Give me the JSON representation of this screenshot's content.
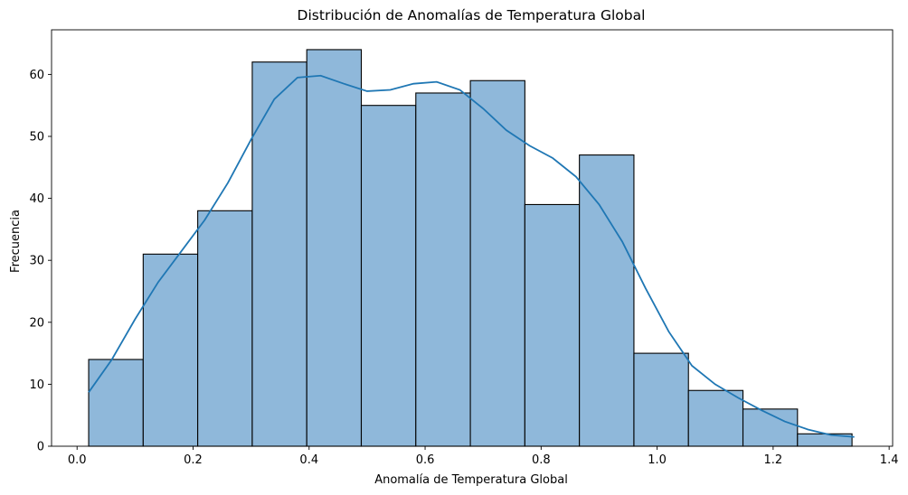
{
  "chart_data": {
    "type": "bar",
    "title": "Distribución de Anomalías de Temperatura Global",
    "xlabel": "Anomalía de Temperatura Global",
    "ylabel": "Frecuencia",
    "xlim": [
      -0.044,
      1.406
    ],
    "ylim": [
      0,
      67.2
    ],
    "xticks": [
      0.0,
      0.2,
      0.4,
      0.6,
      0.8,
      1.0,
      1.2,
      1.4
    ],
    "xtick_labels": [
      "0.0",
      "0.2",
      "0.4",
      "0.6",
      "0.8",
      "1.0",
      "1.2",
      "1.4"
    ],
    "yticks": [
      0,
      10,
      20,
      30,
      40,
      50,
      60
    ],
    "ytick_labels": [
      "0",
      "10",
      "20",
      "30",
      "40",
      "50",
      "60"
    ],
    "bin_edges": [
      0.02,
      0.114,
      0.208,
      0.302,
      0.396,
      0.49,
      0.584,
      0.678,
      0.772,
      0.866,
      0.96,
      1.054,
      1.148,
      1.242,
      1.336
    ],
    "values": [
      14,
      31,
      38,
      62,
      64,
      55,
      57,
      59,
      39,
      47,
      15,
      9,
      6,
      2
    ],
    "kde": {
      "x": [
        0.02,
        0.06,
        0.1,
        0.14,
        0.18,
        0.22,
        0.26,
        0.3,
        0.34,
        0.38,
        0.42,
        0.46,
        0.5,
        0.54,
        0.58,
        0.62,
        0.66,
        0.7,
        0.74,
        0.78,
        0.82,
        0.86,
        0.9,
        0.94,
        0.98,
        1.02,
        1.06,
        1.1,
        1.14,
        1.18,
        1.22,
        1.26,
        1.3,
        1.34
      ],
      "y": [
        8.7,
        14.0,
        20.5,
        26.5,
        31.5,
        36.5,
        42.5,
        49.5,
        56.0,
        59.5,
        59.8,
        58.5,
        57.3,
        57.5,
        58.5,
        58.8,
        57.5,
        54.5,
        51.0,
        48.5,
        46.5,
        43.5,
        39.0,
        33.0,
        25.5,
        18.5,
        13.0,
        10.0,
        7.8,
        5.8,
        4.0,
        2.7,
        1.8,
        1.5
      ]
    },
    "bar_color": "#8fb8da",
    "bar_edge_color": "#000000",
    "line_color": "#1f77b4",
    "grid": false,
    "legend": "none"
  }
}
